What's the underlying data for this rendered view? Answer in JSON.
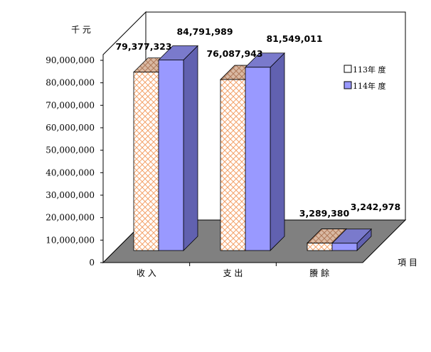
{
  "chart_data": {
    "type": "bar",
    "ylabel": "千  元",
    "xlabel": "項  目",
    "categories": [
      "收  入",
      "支  出",
      "賸  餘"
    ],
    "ylim": [
      0,
      90000000
    ],
    "yticks": [
      0,
      10000000,
      20000000,
      30000000,
      40000000,
      50000000,
      60000000,
      70000000,
      80000000,
      90000000
    ],
    "ytick_labels": [
      "0",
      "10,000,000",
      "20,000,000",
      "30,000,000",
      "40,000,000",
      "50,000,000",
      "60,000,000",
      "70,000,000",
      "80,000,000",
      "90,000,000"
    ],
    "series": [
      {
        "name": "113年 度",
        "values": [
          79377323,
          76087943,
          3289380
        ],
        "value_labels": [
          "79,377,323",
          "76,087,943",
          "3,289,380"
        ],
        "color": "#f7c8a6"
      },
      {
        "name": "114年 度",
        "values": [
          84791989,
          81549011,
          3242978
        ],
        "value_labels": [
          "84,791,989",
          "81,549,011",
          "3,242,978"
        ],
        "color": "#9999ff"
      }
    ],
    "grid": false,
    "legend": "right",
    "colors": {
      "floor": "#808080",
      "series1_pattern": "#f4a26a",
      "series2_side": "#6161b0",
      "series2_top": "#7a7acc"
    }
  }
}
